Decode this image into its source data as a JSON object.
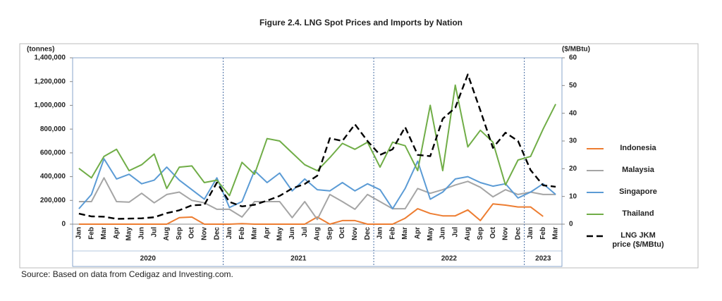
{
  "chart_data": {
    "type": "line",
    "title": "Figure 2.4. LNG Spot Prices and Imports by Nation",
    "y_label": "(tonnes)",
    "y2_label": "($/MBtu)",
    "source": "Source: Based on data from Cedigaz and Investing.com.",
    "categories": [
      "Jan",
      "Feb",
      "Mar",
      "Apr",
      "May",
      "Jun",
      "Jul",
      "Aug",
      "Sep",
      "Oct",
      "Nov",
      "Dec",
      "Jan",
      "Feb",
      "Mar",
      "Apr",
      "May",
      "Jun",
      "Jul",
      "Aug",
      "Sep",
      "Oct",
      "Nov",
      "Dec",
      "Jan",
      "Feb",
      "Mar",
      "Apr",
      "May",
      "Jun",
      "Jul",
      "Aug",
      "Sep",
      "Oct",
      "Nov",
      "Dec",
      "Jan",
      "Feb",
      "Mar"
    ],
    "category_groups": [
      "2020",
      "2021",
      "2022",
      "2023"
    ],
    "ylim": [
      0,
      1400000
    ],
    "yticks": [
      0,
      {
        "value": 200000,
        "label": "200,000"
      },
      {
        "value": 400000,
        "label": "400,000"
      },
      {
        "value": 600000,
        "label": "600,000"
      },
      {
        "value": 800000,
        "label": "800,000"
      },
      {
        "value": 1000000,
        "label": "1,000,000"
      },
      {
        "value": 1200000,
        "label": "1,200,000"
      },
      {
        "value": 1400000,
        "label": "1,400,000"
      }
    ],
    "y2lim": [
      0,
      60
    ],
    "y2ticks": [
      0,
      10,
      20,
      30,
      40,
      50,
      60
    ],
    "series": [
      {
        "name": "Indonesia",
        "color": "#ed7d31",
        "values": [
          0,
          0,
          0,
          0,
          0,
          0,
          0,
          0,
          55000,
          60000,
          0,
          0,
          0,
          5000,
          0,
          0,
          0,
          0,
          0,
          60000,
          0,
          30000,
          30000,
          0,
          0,
          0,
          50000,
          130000,
          90000,
          70000,
          70000,
          120000,
          30000,
          170000,
          160000,
          145000,
          145000,
          65000,
          null
        ]
      },
      {
        "name": "Malaysia",
        "color": "#a5a5a5",
        "values": [
          190000,
          190000,
          390000,
          190000,
          185000,
          260000,
          180000,
          250000,
          270000,
          200000,
          180000,
          125000,
          125000,
          60000,
          190000,
          190000,
          190000,
          55000,
          190000,
          40000,
          250000,
          190000,
          125000,
          250000,
          190000,
          130000,
          130000,
          300000,
          260000,
          290000,
          330000,
          360000,
          310000,
          230000,
          290000,
          250000,
          270000,
          250000,
          250000
        ]
      },
      {
        "name": "Singapore",
        "color": "#5b9bd5",
        "values": [
          130000,
          250000,
          550000,
          380000,
          420000,
          340000,
          370000,
          480000,
          370000,
          290000,
          210000,
          390000,
          140000,
          190000,
          450000,
          350000,
          430000,
          280000,
          380000,
          290000,
          280000,
          350000,
          280000,
          340000,
          290000,
          130000,
          300000,
          530000,
          210000,
          270000,
          380000,
          400000,
          350000,
          320000,
          340000,
          220000,
          270000,
          340000,
          250000
        ]
      },
      {
        "name": "Thailand",
        "color": "#70ad47",
        "values": [
          470000,
          390000,
          570000,
          630000,
          450000,
          500000,
          590000,
          300000,
          480000,
          490000,
          350000,
          370000,
          240000,
          520000,
          420000,
          720000,
          700000,
          600000,
          500000,
          450000,
          560000,
          680000,
          630000,
          690000,
          480000,
          690000,
          660000,
          450000,
          1000000,
          450000,
          1170000,
          650000,
          790000,
          690000,
          330000,
          540000,
          570000,
          800000,
          1010000
        ]
      },
      {
        "name": "LNG JKM price ($/MBtu)",
        "color": "#000000",
        "axis": "y2",
        "dashed": true,
        "values": [
          3.8,
          2.8,
          2.7,
          1.9,
          2.0,
          2.1,
          2.5,
          4.0,
          5.0,
          6.8,
          7.0,
          15.0,
          8.0,
          6.4,
          7.0,
          8.5,
          10.2,
          12.9,
          14.5,
          17.5,
          31,
          30,
          36,
          30,
          25,
          27,
          35,
          25,
          24.5,
          38,
          42,
          54,
          41,
          27.5,
          33,
          30,
          19.5,
          14,
          13.5
        ]
      }
    ]
  }
}
